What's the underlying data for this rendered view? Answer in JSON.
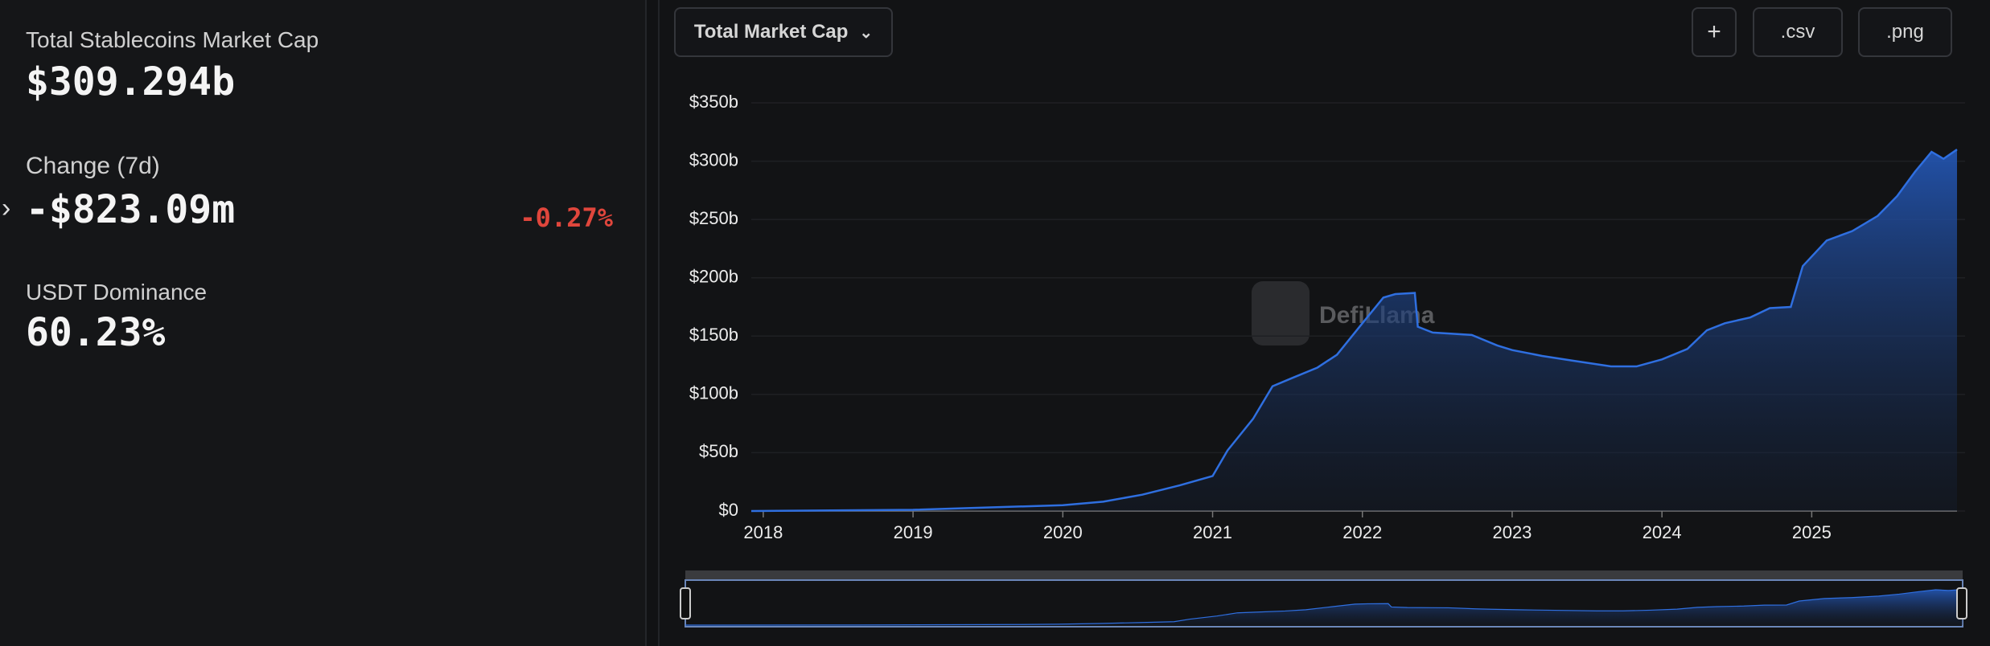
{
  "stats": {
    "market_cap_label": "Total Stablecoins Market Cap",
    "market_cap_value": "$309.294b",
    "change_label": "Change (7d)",
    "change_value": "-$823.09m",
    "change_pct": "-0.27%",
    "dominance_label": "USDT Dominance",
    "dominance_value": "60.23%"
  },
  "toolbar": {
    "dropdown": "Total Market Cap",
    "csv_button": ".csv",
    "png_button": ".png"
  },
  "watermark": "DefiLlama",
  "chart_data": {
    "type": "area",
    "x": [
      2017.92,
      2019,
      2020,
      2020.27,
      2020.53,
      2020.78,
      2021,
      2021.1,
      2021.27,
      2021.4,
      2021.53,
      2021.7,
      2021.83,
      2022,
      2022.14,
      2022.22,
      2022.35,
      2022.37,
      2022.47,
      2022.73,
      2022.9,
      2023,
      2023.2,
      2023.4,
      2023.66,
      2023.83,
      2024,
      2024.17,
      2024.3,
      2024.42,
      2024.59,
      2024.72,
      2024.86,
      2024.94,
      2025.1,
      2025.27,
      2025.44,
      2025.57,
      2025.69,
      2025.8,
      2025.88,
      2025.97
    ],
    "series": [
      {
        "name": "Total Market Cap",
        "color": "#2f6fe0",
        "values": [
          0,
          1,
          5,
          8,
          14,
          22,
          30,
          52,
          79,
          107,
          114,
          123,
          134,
          161,
          183,
          186,
          187,
          158,
          153,
          151,
          142,
          138,
          133,
          129,
          124,
          124,
          130,
          139,
          155,
          161,
          166,
          174,
          175,
          210,
          232,
          240,
          253,
          270,
          291,
          308,
          302,
          310
        ]
      }
    ],
    "xlim": [
      2017.92,
      2025.97
    ],
    "xticks": [
      2018,
      2019,
      2020,
      2021,
      2022,
      2023,
      2024,
      2025
    ],
    "ylim": [
      0,
      350
    ],
    "yticks": [
      {
        "value": 0,
        "label": "$0"
      },
      {
        "value": 50,
        "label": "$50b"
      },
      {
        "value": 100,
        "label": "$100b"
      },
      {
        "value": 150,
        "label": "$150b"
      },
      {
        "value": 200,
        "label": "$200b"
      },
      {
        "value": 250,
        "label": "$250b"
      },
      {
        "value": 300,
        "label": "$300b"
      },
      {
        "value": 350,
        "label": "$350b"
      }
    ],
    "grid": true
  }
}
